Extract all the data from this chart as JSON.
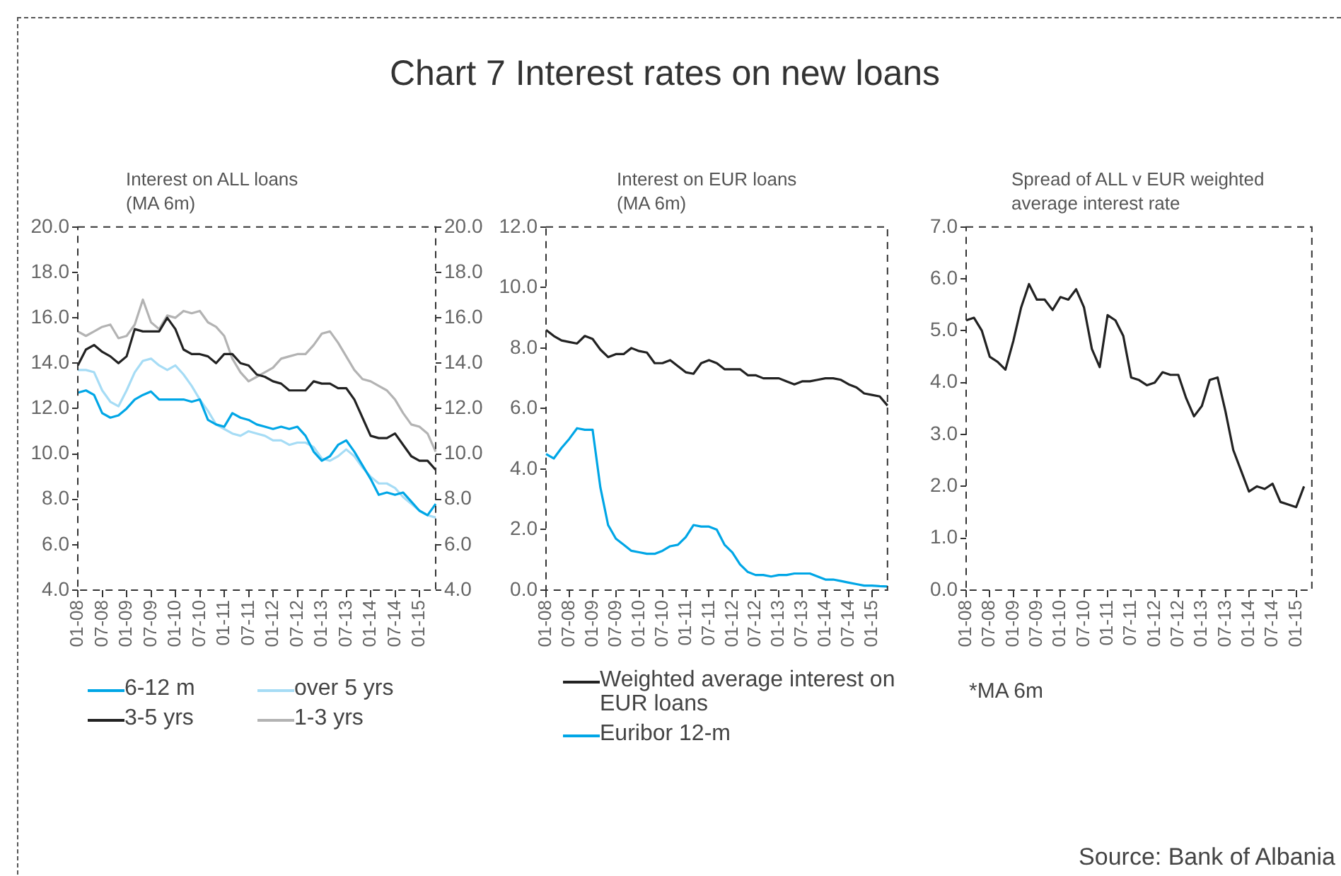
{
  "chart_data": [
    {
      "type": "line",
      "subtitle": "Interest on ALL loans\n(MA 6m)",
      "categories": [
        "01-08",
        null,
        null,
        "07-08",
        null,
        null,
        "01-09",
        null,
        null,
        "07-09",
        null,
        null,
        "01-10",
        null,
        null,
        "07-10",
        null,
        null,
        "01-11",
        null,
        null,
        "07-11",
        null,
        null,
        "01-12",
        null,
        null,
        "07-12",
        null,
        null,
        "01-13",
        null,
        null,
        "07-13",
        null,
        null,
        "01-14",
        null,
        null,
        "07-14",
        null,
        null,
        "01-15",
        null,
        null
      ],
      "series": [
        {
          "name": "6-12 m",
          "color": "#00a6e6",
          "values": [
            12.7,
            12.8,
            12.6,
            11.8,
            11.6,
            11.7,
            12.0,
            12.4,
            12.6,
            12.75,
            12.4,
            12.4,
            12.4,
            12.4,
            12.3,
            12.4,
            11.5,
            11.3,
            11.2,
            11.8,
            11.6,
            11.5,
            11.3,
            11.2,
            11.1,
            11.2,
            11.1,
            11.2,
            10.8,
            10.1,
            9.7,
            9.9,
            10.4,
            10.6,
            10.1,
            9.5,
            8.9,
            8.2,
            8.3,
            8.2,
            8.3,
            7.9,
            7.5,
            7.3,
            7.8
          ]
        },
        {
          "name": "over 5 yrs",
          "color": "#a6dcf5",
          "values": [
            13.7,
            13.7,
            13.6,
            12.8,
            12.3,
            12.1,
            12.8,
            13.6,
            14.1,
            14.2,
            13.9,
            13.7,
            13.9,
            13.5,
            13.0,
            12.4,
            11.9,
            11.3,
            11.1,
            10.9,
            10.8,
            11.0,
            10.9,
            10.8,
            10.6,
            10.6,
            10.4,
            10.5,
            10.5,
            10.3,
            9.8,
            9.7,
            9.9,
            10.2,
            9.9,
            9.4,
            9.0,
            8.7,
            8.7,
            8.5,
            8.1,
            7.8,
            7.5,
            7.3,
            7.2
          ]
        },
        {
          "name": "3-5 yrs",
          "color": "#222222",
          "values": [
            13.9,
            14.6,
            14.8,
            14.5,
            14.3,
            14.0,
            14.3,
            15.5,
            15.4,
            15.4,
            15.4,
            16.0,
            15.5,
            14.6,
            14.4,
            14.4,
            14.3,
            14.0,
            14.4,
            14.4,
            14.0,
            13.9,
            13.5,
            13.4,
            13.2,
            13.1,
            12.8,
            12.8,
            12.8,
            13.2,
            13.1,
            13.1,
            12.9,
            12.9,
            12.4,
            11.6,
            10.8,
            10.7,
            10.7,
            10.9,
            10.4,
            9.9,
            9.7,
            9.7,
            9.3
          ]
        },
        {
          "name": "1-3 yrs",
          "color": "#b3b3b3",
          "values": [
            15.4,
            15.2,
            15.4,
            15.6,
            15.7,
            15.1,
            15.2,
            15.7,
            16.8,
            15.8,
            15.5,
            16.1,
            16.0,
            16.3,
            16.2,
            16.3,
            15.8,
            15.6,
            15.2,
            14.2,
            13.6,
            13.2,
            13.4,
            13.6,
            13.8,
            14.2,
            14.3,
            14.4,
            14.4,
            14.8,
            15.3,
            15.4,
            14.9,
            14.3,
            13.7,
            13.3,
            13.2,
            13.0,
            12.8,
            12.4,
            11.8,
            11.3,
            11.2,
            10.9,
            10.1
          ]
        }
      ],
      "ylim": [
        4,
        20
      ],
      "yticks": [
        {
          "value": 4,
          "label": "4.0"
        },
        {
          "value": 6,
          "label": "6.0"
        },
        {
          "value": 8,
          "label": "8.0"
        },
        {
          "value": 10,
          "label": "10.0"
        },
        {
          "value": 12,
          "label": "12.0"
        },
        {
          "value": 14,
          "label": "14.0"
        },
        {
          "value": 16,
          "label": "16.0"
        },
        {
          "value": 18,
          "label": "18.0"
        },
        {
          "value": 20,
          "label": "20.0"
        }
      ],
      "y2lim": [
        4,
        20
      ],
      "y2ticks": [
        {
          "value": 4,
          "label": "4.0"
        },
        {
          "value": 6,
          "label": "6.0"
        },
        {
          "value": 8,
          "label": "8.0"
        },
        {
          "value": 10,
          "label": "10.0"
        },
        {
          "value": 12,
          "label": "12.0"
        },
        {
          "value": 14,
          "label": "14.0"
        },
        {
          "value": 16,
          "label": "16.0"
        },
        {
          "value": 18,
          "label": "18.0"
        },
        {
          "value": 20,
          "label": "20.0"
        }
      ],
      "legend": "bottom",
      "grid": false
    },
    {
      "type": "line",
      "title": "Chart 7 Interest rates on new loans",
      "subtitle": "Interest on EUR loans\n(MA 6m)",
      "categories": [
        "01-08",
        null,
        null,
        "07-08",
        null,
        null,
        "01-09",
        null,
        null,
        "07-09",
        null,
        null,
        "01-10",
        null,
        null,
        "07-10",
        null,
        null,
        "01-11",
        null,
        null,
        "07-11",
        null,
        null,
        "01-12",
        null,
        null,
        "07-12",
        null,
        null,
        "01-13",
        null,
        null,
        "07-13",
        null,
        null,
        "01-14",
        null,
        null,
        "07-14",
        null,
        null,
        "01-15",
        null,
        null
      ],
      "series": [
        {
          "name": "Weighted average interest on EUR loans",
          "color": "#222222",
          "values": [
            8.6,
            8.4,
            8.25,
            8.2,
            8.15,
            8.4,
            8.3,
            7.95,
            7.7,
            7.8,
            7.8,
            8.0,
            7.9,
            7.85,
            7.5,
            7.5,
            7.6,
            7.4,
            7.2,
            7.15,
            7.5,
            7.6,
            7.5,
            7.3,
            7.3,
            7.3,
            7.1,
            7.1,
            7.0,
            7.0,
            7.0,
            6.9,
            6.8,
            6.9,
            6.9,
            6.95,
            7.0,
            7.0,
            6.95,
            6.8,
            6.7,
            6.5,
            6.45,
            6.4,
            6.1
          ]
        },
        {
          "name": "Euribor 12-m",
          "color": "#00a6e6",
          "values": [
            4.5,
            4.35,
            4.7,
            5.0,
            5.35,
            5.3,
            5.3,
            3.4,
            2.15,
            1.7,
            1.5,
            1.3,
            1.25,
            1.2,
            1.2,
            1.3,
            1.45,
            1.5,
            1.75,
            2.15,
            2.1,
            2.1,
            2.0,
            1.5,
            1.25,
            0.85,
            0.6,
            0.5,
            0.5,
            0.45,
            0.5,
            0.5,
            0.55,
            0.55,
            0.55,
            0.45,
            0.35,
            0.35,
            0.3,
            0.25,
            0.2,
            0.15,
            0.15,
            0.13,
            0.12
          ]
        }
      ],
      "ylim": [
        0,
        12
      ],
      "yticks": [
        {
          "value": 0,
          "label": "0.0"
        },
        {
          "value": 2,
          "label": "2.0"
        },
        {
          "value": 4,
          "label": "4.0"
        },
        {
          "value": 6,
          "label": "6.0"
        },
        {
          "value": 8,
          "label": "8.0"
        },
        {
          "value": 10,
          "label": "10.0"
        },
        {
          "value": 12,
          "label": "12.0"
        }
      ],
      "legend": "bottom",
      "grid": false
    },
    {
      "type": "line",
      "subtitle": "Spread of ALL v EUR weighted\naverage interest rate",
      "categories": [
        "01-08",
        null,
        null,
        "07-08",
        null,
        null,
        "01-09",
        null,
        null,
        "07-09",
        null,
        null,
        "01-10",
        null,
        null,
        "07-10",
        null,
        null,
        "01-11",
        null,
        null,
        "07-11",
        null,
        null,
        "01-12",
        null,
        null,
        "07-12",
        null,
        null,
        "01-13",
        null,
        null,
        "07-13",
        null,
        null,
        "01-14",
        null,
        null,
        "07-14",
        null,
        null,
        "01-15",
        null,
        null
      ],
      "series": [
        {
          "color": "#222222",
          "values": [
            5.2,
            5.25,
            5.0,
            4.5,
            4.4,
            4.25,
            4.8,
            5.45,
            5.9,
            5.6,
            5.6,
            5.4,
            5.65,
            5.6,
            5.8,
            5.45,
            4.65,
            4.3,
            5.3,
            5.2,
            4.9,
            4.1,
            4.05,
            3.95,
            4.0,
            4.2,
            4.15,
            4.15,
            3.7,
            3.35,
            3.55,
            4.05,
            4.1,
            3.45,
            2.7,
            2.3,
            1.9,
            2.0,
            1.95,
            2.05,
            1.7,
            1.65,
            1.6,
            2.0,
            null
          ]
        }
      ],
      "ylim": [
        0,
        7
      ],
      "yticks": [
        {
          "value": 0,
          "label": "0.0"
        },
        {
          "value": 1,
          "label": "1.0"
        },
        {
          "value": 2,
          "label": "2.0"
        },
        {
          "value": 3,
          "label": "3.0"
        },
        {
          "value": 4,
          "label": "4.0"
        },
        {
          "value": 5,
          "label": "5.0"
        },
        {
          "value": 6,
          "label": "6.0"
        },
        {
          "value": 7,
          "label": "7.0"
        }
      ],
      "grid": false,
      "annotations": [
        "*MA 6m",
        "Source: Bank of Albania"
      ]
    }
  ]
}
